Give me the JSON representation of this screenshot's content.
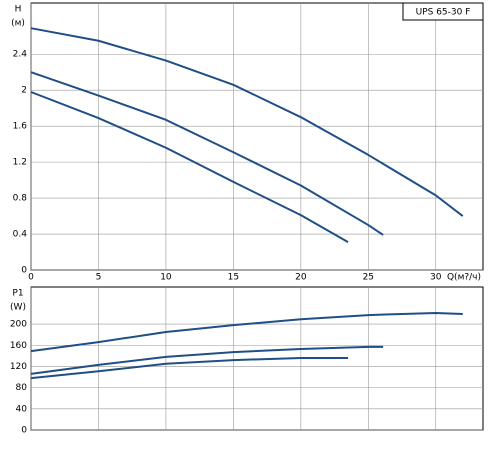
{
  "chart_data": [
    {
      "type": "line",
      "title": "UPS 65-30 F",
      "ylabel": "H",
      "yunit": "(м)",
      "xlabel": "Q(м?/ч)",
      "xlim": [
        0,
        33.5
      ],
      "xticks": [
        0,
        5,
        10,
        15,
        20,
        25,
        30
      ],
      "show_xtick_labels": true,
      "ylim": [
        0,
        2.97
      ],
      "yticks": [
        0,
        0.4,
        0.8,
        1.2,
        1.6,
        2,
        2.4
      ],
      "grid": true,
      "series": [
        {
          "color": "#1f4f86",
          "x": [
            0,
            5,
            10,
            15,
            20,
            25,
            30,
            32
          ],
          "values": [
            2.69,
            2.55,
            2.33,
            2.06,
            1.7,
            1.28,
            0.83,
            0.6
          ]
        },
        {
          "color": "#1f4f86",
          "x": [
            0,
            5,
            10,
            15,
            20,
            25,
            26.1
          ],
          "values": [
            2.2,
            1.94,
            1.67,
            1.31,
            0.94,
            0.5,
            0.39
          ]
        },
        {
          "color": "#1f4f86",
          "x": [
            0,
            5,
            10,
            15,
            20,
            23.5
          ],
          "values": [
            1.98,
            1.69,
            1.36,
            0.98,
            0.61,
            0.31
          ]
        }
      ]
    },
    {
      "type": "line",
      "ylabel": "P1",
      "yunit": "(W)",
      "xlim": [
        0,
        33.5
      ],
      "xticks": [
        0,
        5,
        10,
        15,
        20,
        25,
        30
      ],
      "show_xtick_labels": false,
      "ylim": [
        0,
        270
      ],
      "yticks": [
        0,
        40,
        80,
        120,
        160,
        200
      ],
      "grid": true,
      "series": [
        {
          "color": "#1f4f86",
          "x": [
            0,
            5,
            10,
            15,
            20,
            25,
            30,
            32
          ],
          "values": [
            149,
            166,
            185,
            198,
            209,
            217,
            221,
            219
          ]
        },
        {
          "color": "#1f4f86",
          "x": [
            0,
            5,
            10,
            15,
            20,
            25,
            26.1
          ],
          "values": [
            106,
            123,
            138,
            147,
            153,
            157,
            157
          ]
        },
        {
          "color": "#1f4f86",
          "x": [
            0,
            5,
            10,
            15,
            20,
            23.5
          ],
          "values": [
            98,
            111,
            125,
            132,
            136,
            136
          ]
        }
      ]
    }
  ]
}
